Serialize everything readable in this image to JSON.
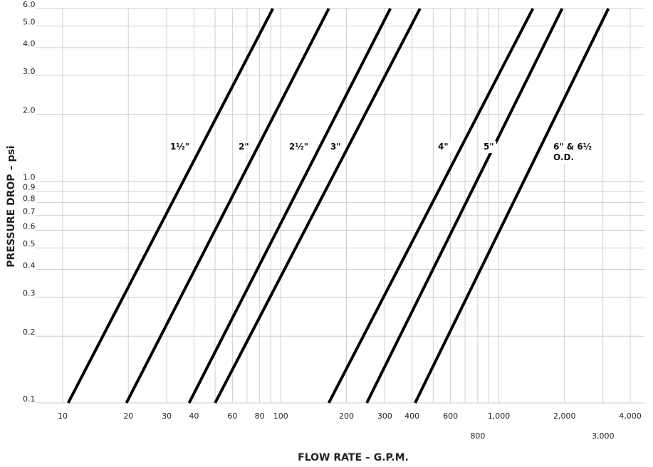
{
  "chart_data": {
    "type": "line",
    "xlabel": "FLOW RATE – G.P.M.",
    "ylabel": "PRESSURE DROP – psi",
    "xscale": "log",
    "yscale": "log",
    "xlim": [
      10,
      4650
    ],
    "ylim": [
      0.1,
      6.0
    ],
    "xticks": [
      10,
      20,
      30,
      40,
      60,
      80,
      100,
      200,
      300,
      400,
      600,
      800,
      {
        "value": 1000,
        "label": "1,000"
      },
      {
        "value": 2000,
        "label": "2,000"
      },
      {
        "value": 3000,
        "label": "3,000"
      },
      {
        "value": 4000,
        "label": "4,000"
      }
    ],
    "xgrid": [
      50,
      70,
      90,
      500,
      700,
      900
    ],
    "yticks": [
      0.1,
      0.2,
      0.3,
      0.4,
      0.5,
      0.6,
      0.7,
      0.8,
      0.9,
      {
        "value": 1,
        "label": "1.0"
      },
      {
        "value": 2,
        "label": "2.0"
      },
      {
        "value": 3,
        "label": "3.0"
      },
      {
        "value": 4,
        "label": "4.0"
      },
      {
        "value": 5,
        "label": "5.0"
      },
      {
        "value": 6,
        "label": "6.0"
      }
    ],
    "grid": true,
    "series": [
      {
        "name": "1½\"",
        "color": "#000000",
        "x": [
          10.6,
          92
        ],
        "values": [
          0.1,
          6.0
        ]
      },
      {
        "name": "2\"",
        "color": "#000000",
        "x": [
          19.6,
          166
        ],
        "values": [
          0.1,
          6.0
        ]
      },
      {
        "name": "2½\"",
        "color": "#000000",
        "x": [
          38,
          318
        ],
        "values": [
          0.1,
          6.0
        ]
      },
      {
        "name": "3\"",
        "color": "#000000",
        "x": [
          50,
          435
        ],
        "values": [
          0.1,
          6.0
        ]
      },
      {
        "name": "4\"",
        "color": "#000000",
        "x": [
          166,
          1432
        ],
        "values": [
          0.1,
          6.0
        ]
      },
      {
        "name": "5\"",
        "color": "#000000",
        "x": [
          248,
          1950
        ],
        "values": [
          0.1,
          6.0
        ]
      },
      {
        "name": "6\" & 6½ O.D.",
        "color": "#000000",
        "x": [
          413,
          3177
        ],
        "values": [
          0.1,
          6.0
        ]
      }
    ]
  }
}
